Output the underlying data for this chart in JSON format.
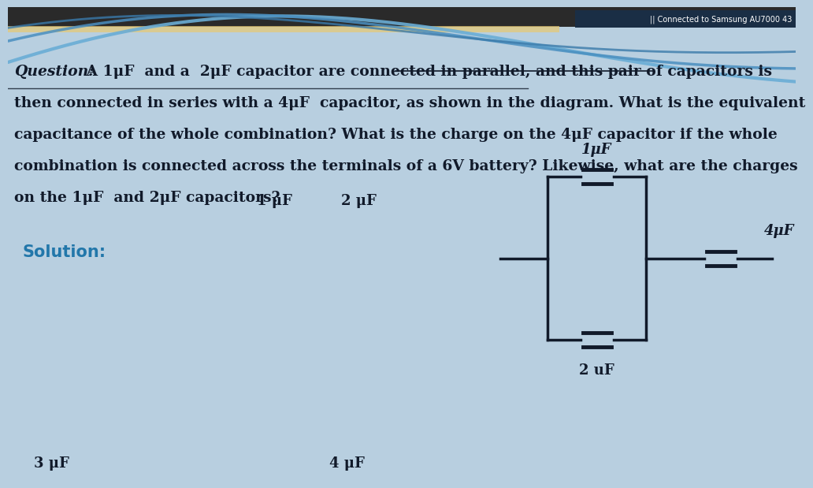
{
  "bg_color": "#b8cfe0",
  "header_bg": "#1a2e45",
  "header_text": "|| Connected to Samsung AU7000 43",
  "q_bold_italic": "Question:",
  "q_line1_rest": " A 1μF  and a  2μF capacitor are connected in parallel, and this pair of capacitors is",
  "q_line2": "then connected in series with a 4μF  capacitor, as shown in the diagram. What is the equivalent",
  "q_line3": "capacitance of the whole combination? What is the charge on the 4μF capacitor if the whole",
  "q_line4": "combination is connected across the terminals of a 6V battery? Likewise, what are the charges",
  "q_line5": "on the 1μF  and 2μF capacitors?",
  "solution_label": "Solution:",
  "solution_color": "#2277aa",
  "text_color": "#111a2a",
  "wire_color": "#111a2a",
  "lbl_1uF_mid": "1 μF",
  "lbl_2uF_mid": "2 μF",
  "lbl_3uF": "3 μF",
  "lbl_4uF_mid": "4 μF",
  "circ_lbl_1uF": "1μF",
  "circ_lbl_2uF": "2 uF",
  "circ_lbl_4uF": "4μF",
  "wave1_color": "#6aadd5",
  "wave2_color": "#4a8fc0",
  "wave3_color": "#3a7aaa",
  "top_stripe_color": "#e8c870",
  "top_dark_color": "#2a2a2a"
}
